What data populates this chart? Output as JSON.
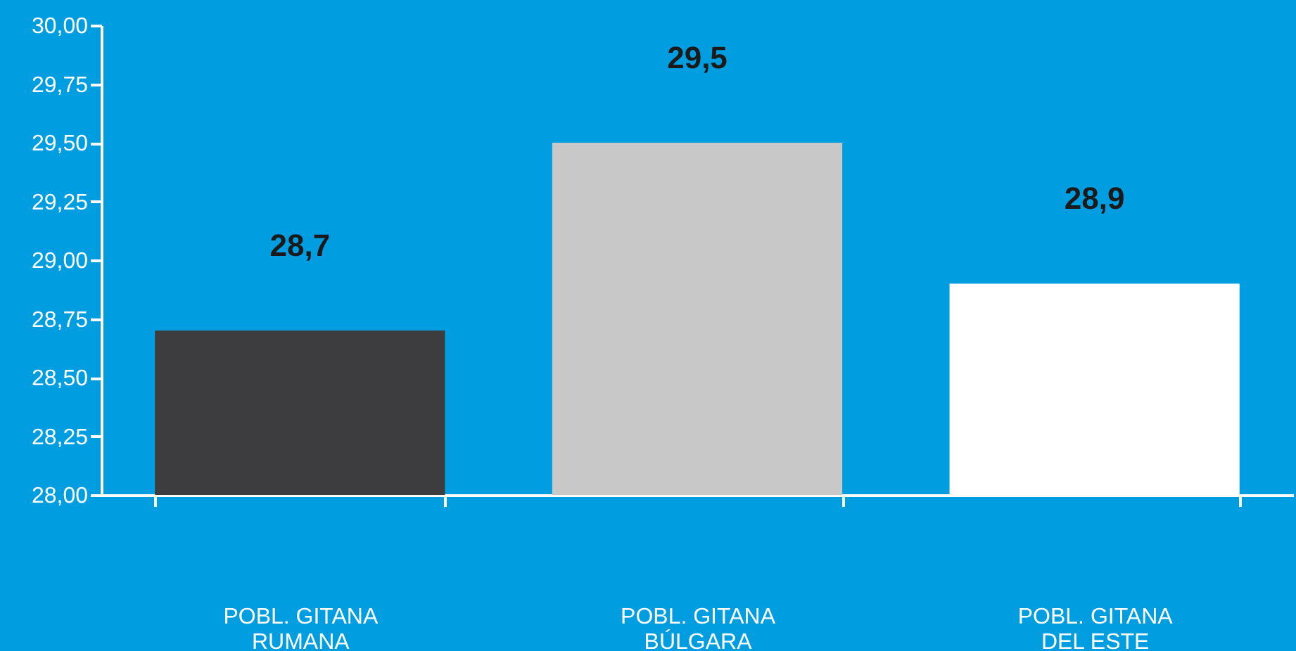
{
  "chart_data": {
    "type": "bar",
    "categories": [
      "POBL. GITANA\nRUMANA",
      "POBL. GITANA\nBÚLGARA",
      "POBL. GITANA\nDEL ESTE"
    ],
    "values": [
      28.7,
      29.5,
      28.9
    ],
    "colors": [
      "#3d3d3f",
      "#c8c8c8",
      "#ffffff"
    ],
    "value_labels": [
      "28,7",
      "29,5",
      "28,9"
    ],
    "ylim": [
      28,
      30
    ],
    "yticks": [
      {
        "value": 28,
        "label": "28,00"
      },
      {
        "value": 28.25,
        "label": "28,25"
      },
      {
        "value": 28.5,
        "label": "28,50"
      },
      {
        "value": 28.75,
        "label": "28,75"
      },
      {
        "value": 29,
        "label": "29,00"
      },
      {
        "value": 29.25,
        "label": "29,25"
      },
      {
        "value": 29.5,
        "label": "29,50"
      },
      {
        "value": 29.75,
        "label": "29,75"
      },
      {
        "value": 30,
        "label": "30,00"
      }
    ],
    "grid": false
  }
}
